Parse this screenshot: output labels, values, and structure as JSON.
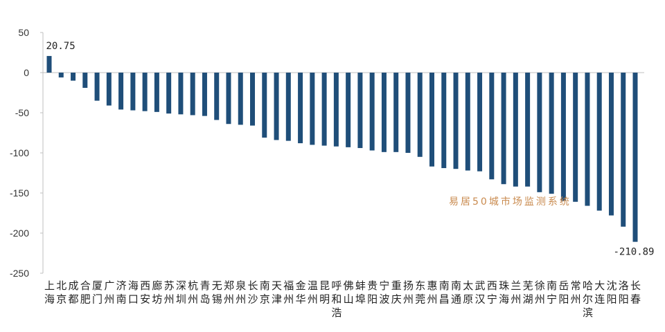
{
  "chart_data": {
    "type": "bar",
    "categories": [
      "上海",
      "北京",
      "成都",
      "合肥",
      "厦门",
      "广州",
      "济南",
      "海口",
      "西安",
      "廊坊",
      "苏州",
      "深圳",
      "杭州",
      "青岛",
      "无锡",
      "郑州",
      "泉州",
      "长沙",
      "南京",
      "天津",
      "福州",
      "金华",
      "温州",
      "昆明",
      "呼和浩",
      "佛山",
      "蚌埠",
      "贵阳",
      "宁波",
      "重庆",
      "扬州",
      "东莞",
      "惠州",
      "南昌",
      "南通",
      "太原",
      "武汉",
      "西宁",
      "珠海",
      "兰州",
      "芜湖",
      "徐州",
      "南宁",
      "岳阳",
      "常州",
      "哈尔滨",
      "大连",
      "沈阳",
      "洛阳",
      "长春"
    ],
    "values": [
      20.75,
      -6,
      -10,
      -19,
      -35,
      -41,
      -46,
      -47,
      -48,
      -49,
      -51,
      -52,
      -53,
      -54,
      -59,
      -64,
      -65,
      -66,
      -81,
      -84,
      -85,
      -88,
      -90,
      -91,
      -92,
      -93,
      -94,
      -97,
      -99,
      -99,
      -100,
      -105,
      -117,
      -119,
      -120,
      -122,
      -123,
      -133,
      -139,
      -142,
      -142,
      -149,
      -151,
      -160,
      -161,
      -166,
      -172,
      -178,
      -192,
      -210.89
    ],
    "ylim": [
      -250,
      50
    ],
    "yticks": [
      50,
      0,
      -50,
      -100,
      -150,
      -200,
      -250
    ],
    "data_labels": [
      {
        "category": "上海",
        "text": "20.75"
      },
      {
        "category": "长春",
        "text": "-210.89"
      }
    ],
    "grid": false,
    "bar_color": "#1f4e79",
    "axis_color": "#bfbfbf"
  },
  "watermark": "易居50城市场监测系统",
  "watermark_color": "#c98a4e"
}
